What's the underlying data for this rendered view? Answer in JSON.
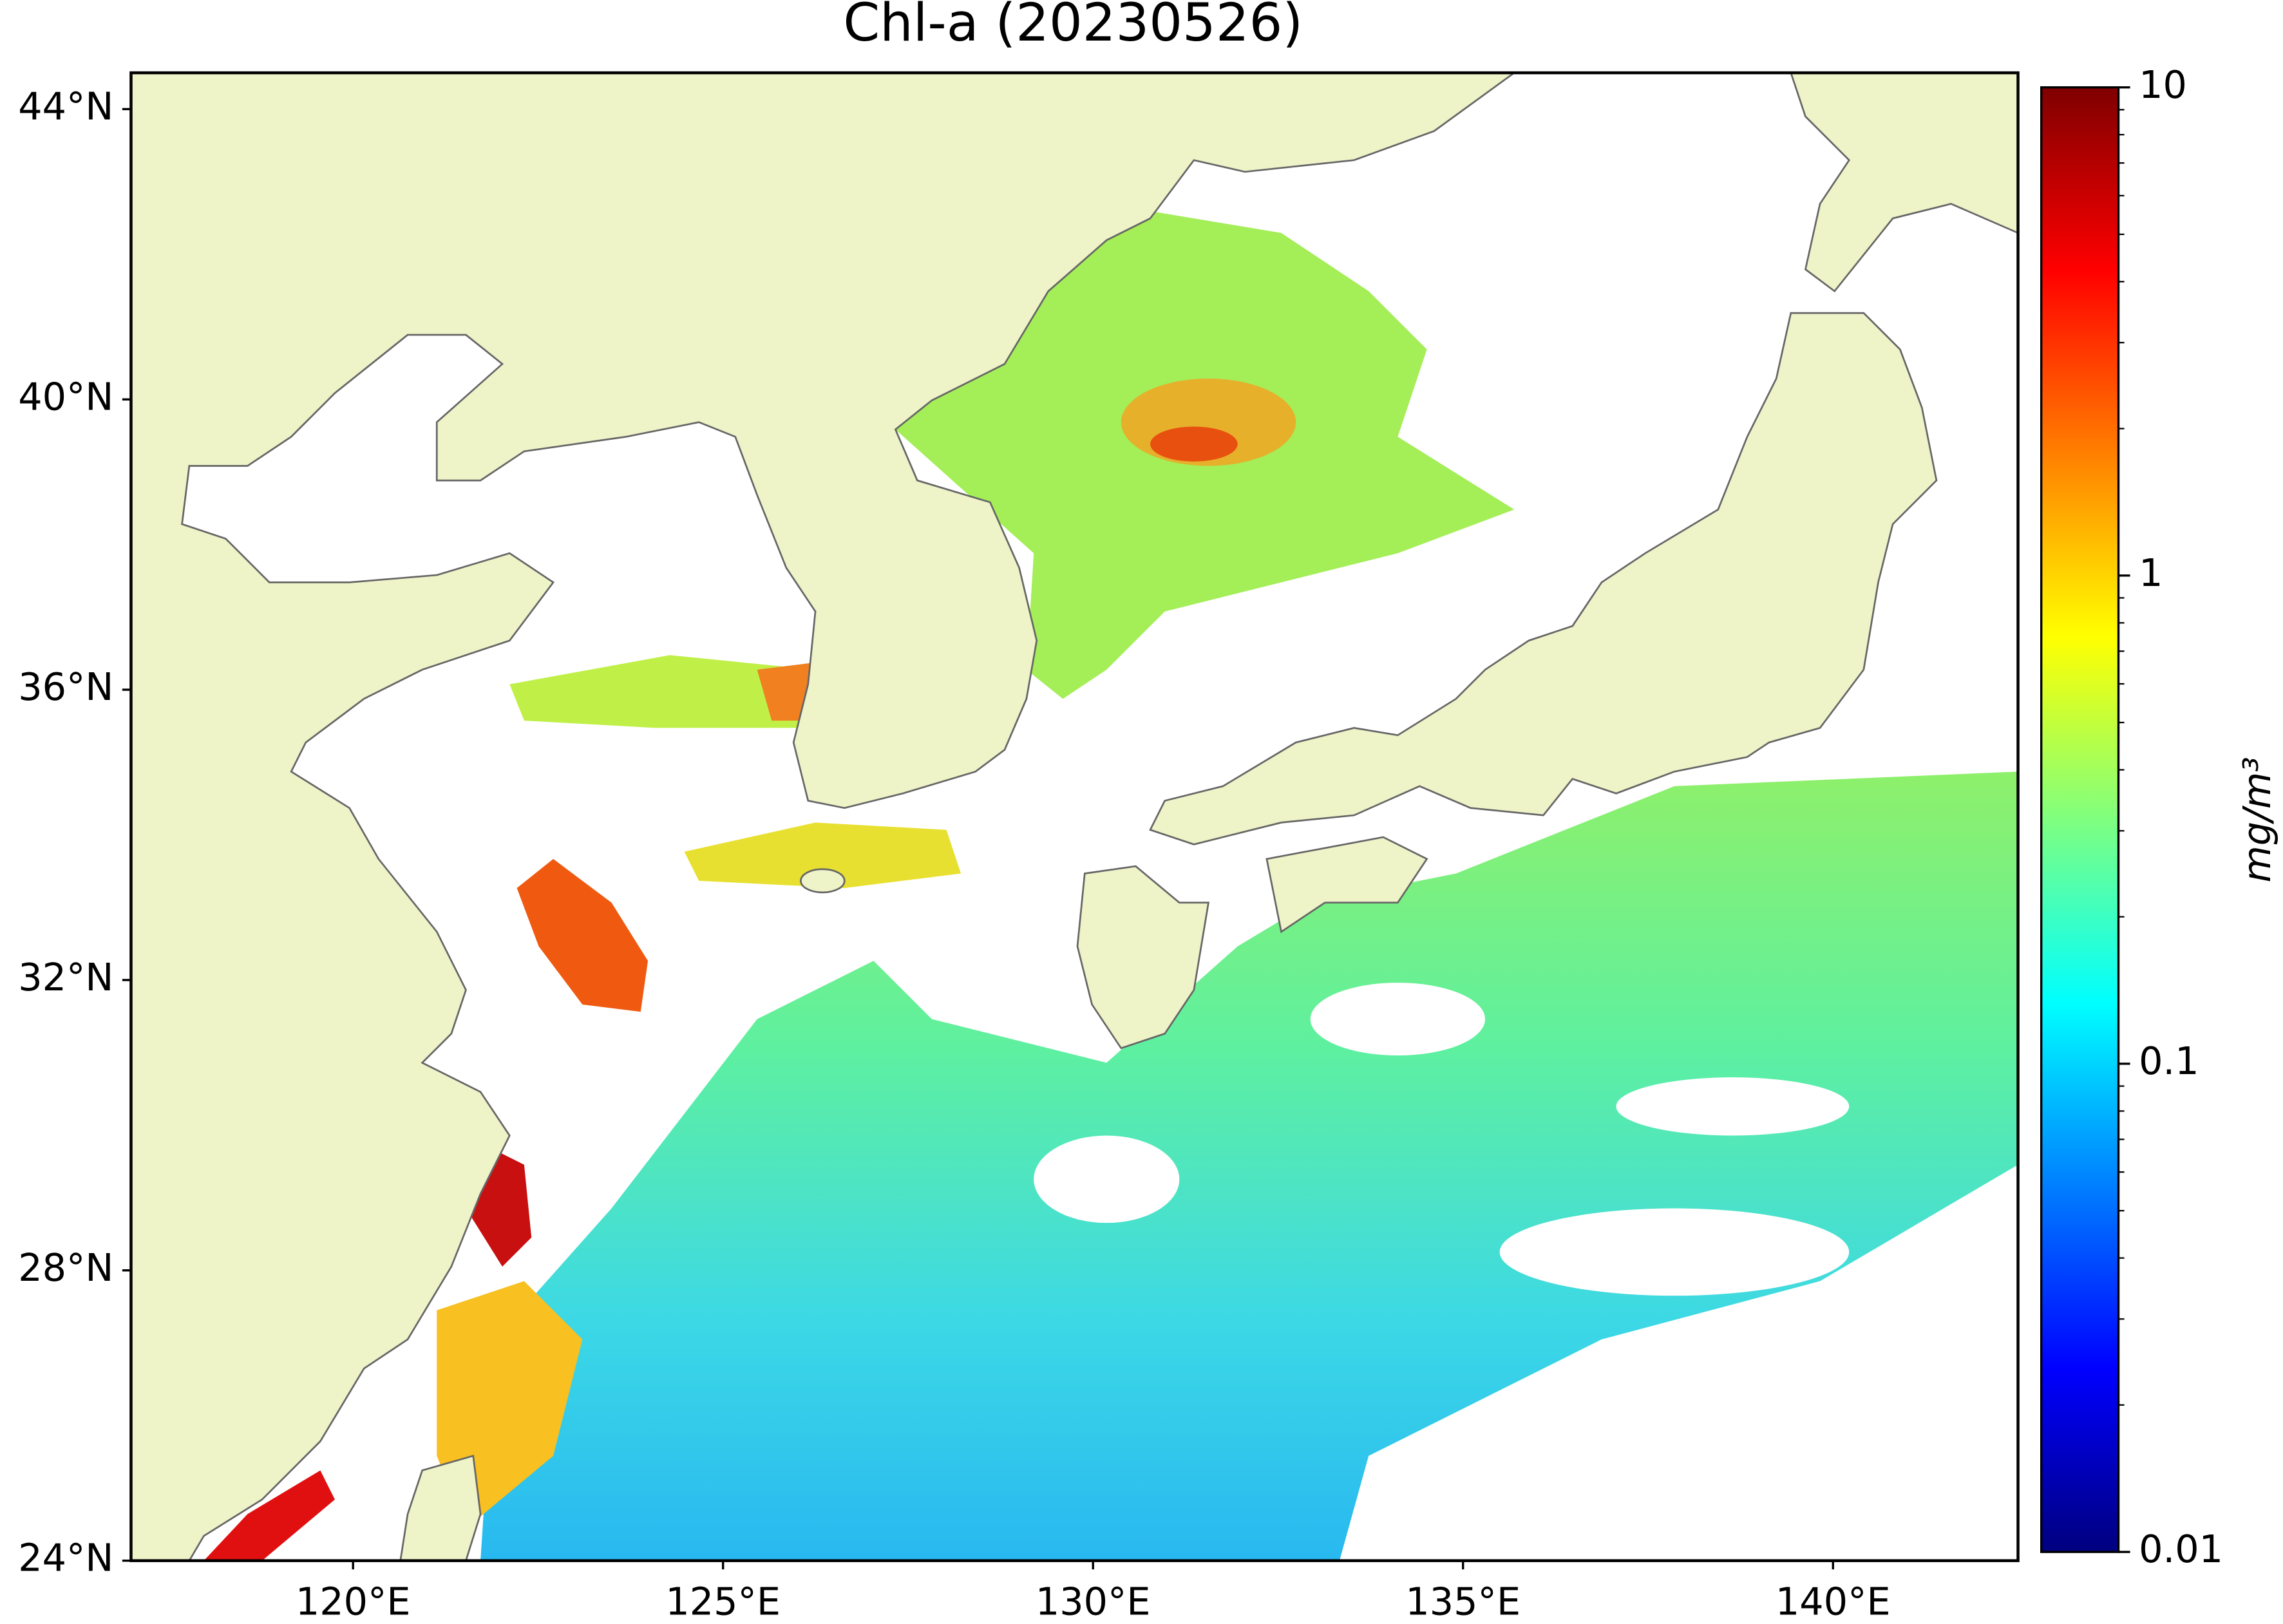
{
  "title": "Chl-a (20230526)",
  "map": {
    "lonlim": [
      117,
      142.5
    ],
    "latlim": [
      24,
      44.5
    ],
    "lat_ticks": [
      {
        "value": 24,
        "label": "24°N"
      },
      {
        "value": 28,
        "label": "28°N"
      },
      {
        "value": 32,
        "label": "32°N"
      },
      {
        "value": 36,
        "label": "36°N"
      },
      {
        "value": 40,
        "label": "40°N"
      },
      {
        "value": 44,
        "label": "44°N"
      }
    ],
    "lon_ticks": [
      {
        "value": 120,
        "label": "120°E"
      },
      {
        "value": 125,
        "label": "125°E"
      },
      {
        "value": 130,
        "label": "130°E"
      },
      {
        "value": 135,
        "label": "135°E"
      },
      {
        "value": 140,
        "label": "140°E"
      }
    ]
  },
  "colorbar": {
    "label": "mg/m³",
    "scale": "log",
    "colormap": "jet",
    "lim": [
      0.01,
      10
    ],
    "ticks": [
      0.01,
      0.1,
      1,
      10
    ]
  }
}
